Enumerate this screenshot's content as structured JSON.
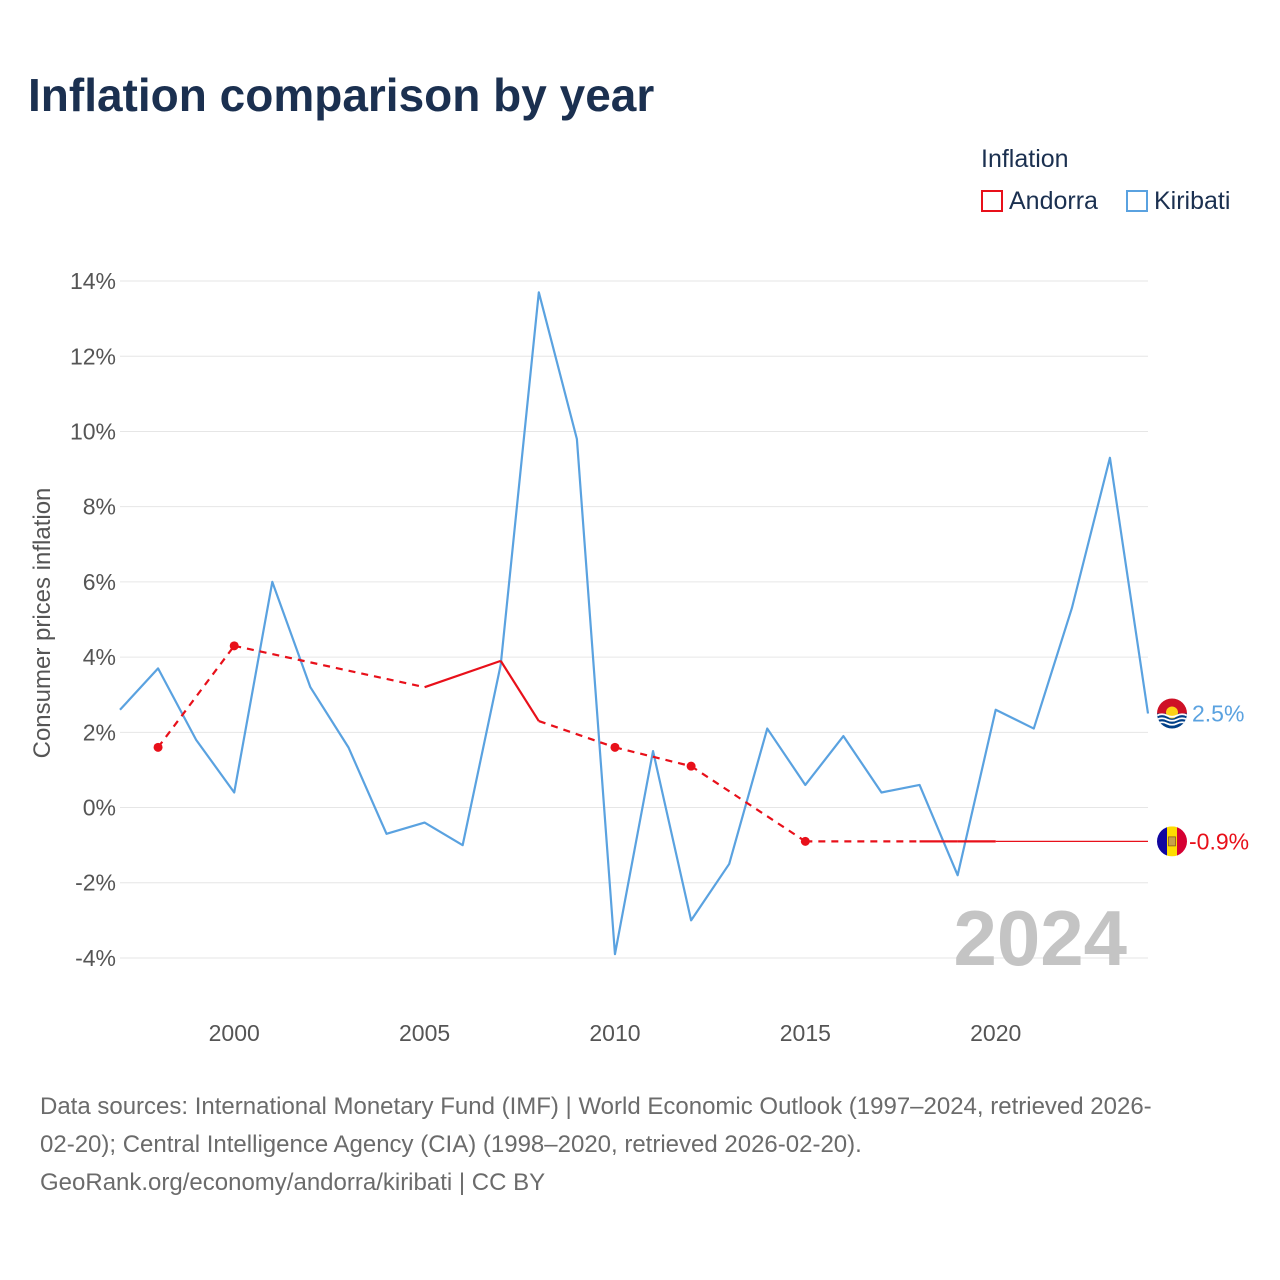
{
  "title": "Inflation comparison by year",
  "legend": {
    "title": "Inflation",
    "items": [
      {
        "label": "Andorra",
        "color": "#e8101a"
      },
      {
        "label": "Kiribati",
        "color": "#5aa2e0"
      }
    ]
  },
  "watermark_year": "2024",
  "source_lines": [
    "Data sources: International Monetary Fund (IMF) | World Economic Outlook (1997–2024, retrieved 2026-",
    "02-20); Central Intelligence Agency (CIA) (1998–2020, retrieved 2026-02-20).",
    "GeoRank.org/economy/andorra/kiribati | CC BY"
  ],
  "chart_data": {
    "type": "line",
    "title": "Inflation comparison by year",
    "xlabel": "",
    "ylabel": "Consumer prices inflation",
    "xlim": [
      1997,
      2024
    ],
    "ylim": [
      -4.4,
      14.4
    ],
    "x_ticks": [
      2000,
      2005,
      2010,
      2015,
      2020
    ],
    "y_ticks": [
      -4,
      -2,
      0,
      2,
      4,
      6,
      8,
      10,
      12,
      14
    ],
    "y_tick_labels": [
      "-4%",
      "-2%",
      "0%",
      "2%",
      "4%",
      "6%",
      "8%",
      "10%",
      "12%",
      "14%"
    ],
    "series": [
      {
        "name": "Kiribati",
        "color": "#5aa2e0",
        "end_label": "2.5%",
        "points": [
          [
            1997,
            2.6
          ],
          [
            1998,
            3.7
          ],
          [
            1999,
            1.8
          ],
          [
            2000,
            0.4
          ],
          [
            2001,
            6.0
          ],
          [
            2002,
            3.2
          ],
          [
            2003,
            1.6
          ],
          [
            2004,
            -0.7
          ],
          [
            2005,
            -0.4
          ],
          [
            2006,
            -1.0
          ],
          [
            2007,
            3.8
          ],
          [
            2008,
            13.7
          ],
          [
            2009,
            9.8
          ],
          [
            2010,
            -3.9
          ],
          [
            2011,
            1.5
          ],
          [
            2012,
            -3.0
          ],
          [
            2013,
            -1.5
          ],
          [
            2014,
            2.1
          ],
          [
            2015,
            0.6
          ],
          [
            2016,
            1.9
          ],
          [
            2017,
            0.4
          ],
          [
            2018,
            0.6
          ],
          [
            2019,
            -1.8
          ],
          [
            2020,
            2.6
          ],
          [
            2021,
            2.1
          ],
          [
            2022,
            5.3
          ],
          [
            2023,
            9.3
          ],
          [
            2024,
            2.5
          ]
        ]
      },
      {
        "name": "Andorra",
        "color": "#e8101a",
        "end_label": "-0.9%",
        "points": [
          [
            1998,
            1.6
          ],
          [
            2000,
            4.3
          ],
          [
            2005,
            3.2
          ],
          [
            2007,
            3.9
          ],
          [
            2008,
            2.3
          ],
          [
            2010,
            1.6
          ],
          [
            2012,
            1.1
          ],
          [
            2015,
            -0.9
          ],
          [
            2018,
            -0.9
          ],
          [
            2019,
            -0.9
          ],
          [
            2020,
            -0.9
          ]
        ],
        "marker_years": [
          1998,
          2000,
          2010,
          2012,
          2015
        ],
        "solid_segments": [
          [
            2005,
            2007
          ],
          [
            2007,
            2008
          ],
          [
            2018,
            2019
          ],
          [
            2019,
            2020
          ]
        ],
        "extend_to": 2024
      }
    ]
  }
}
